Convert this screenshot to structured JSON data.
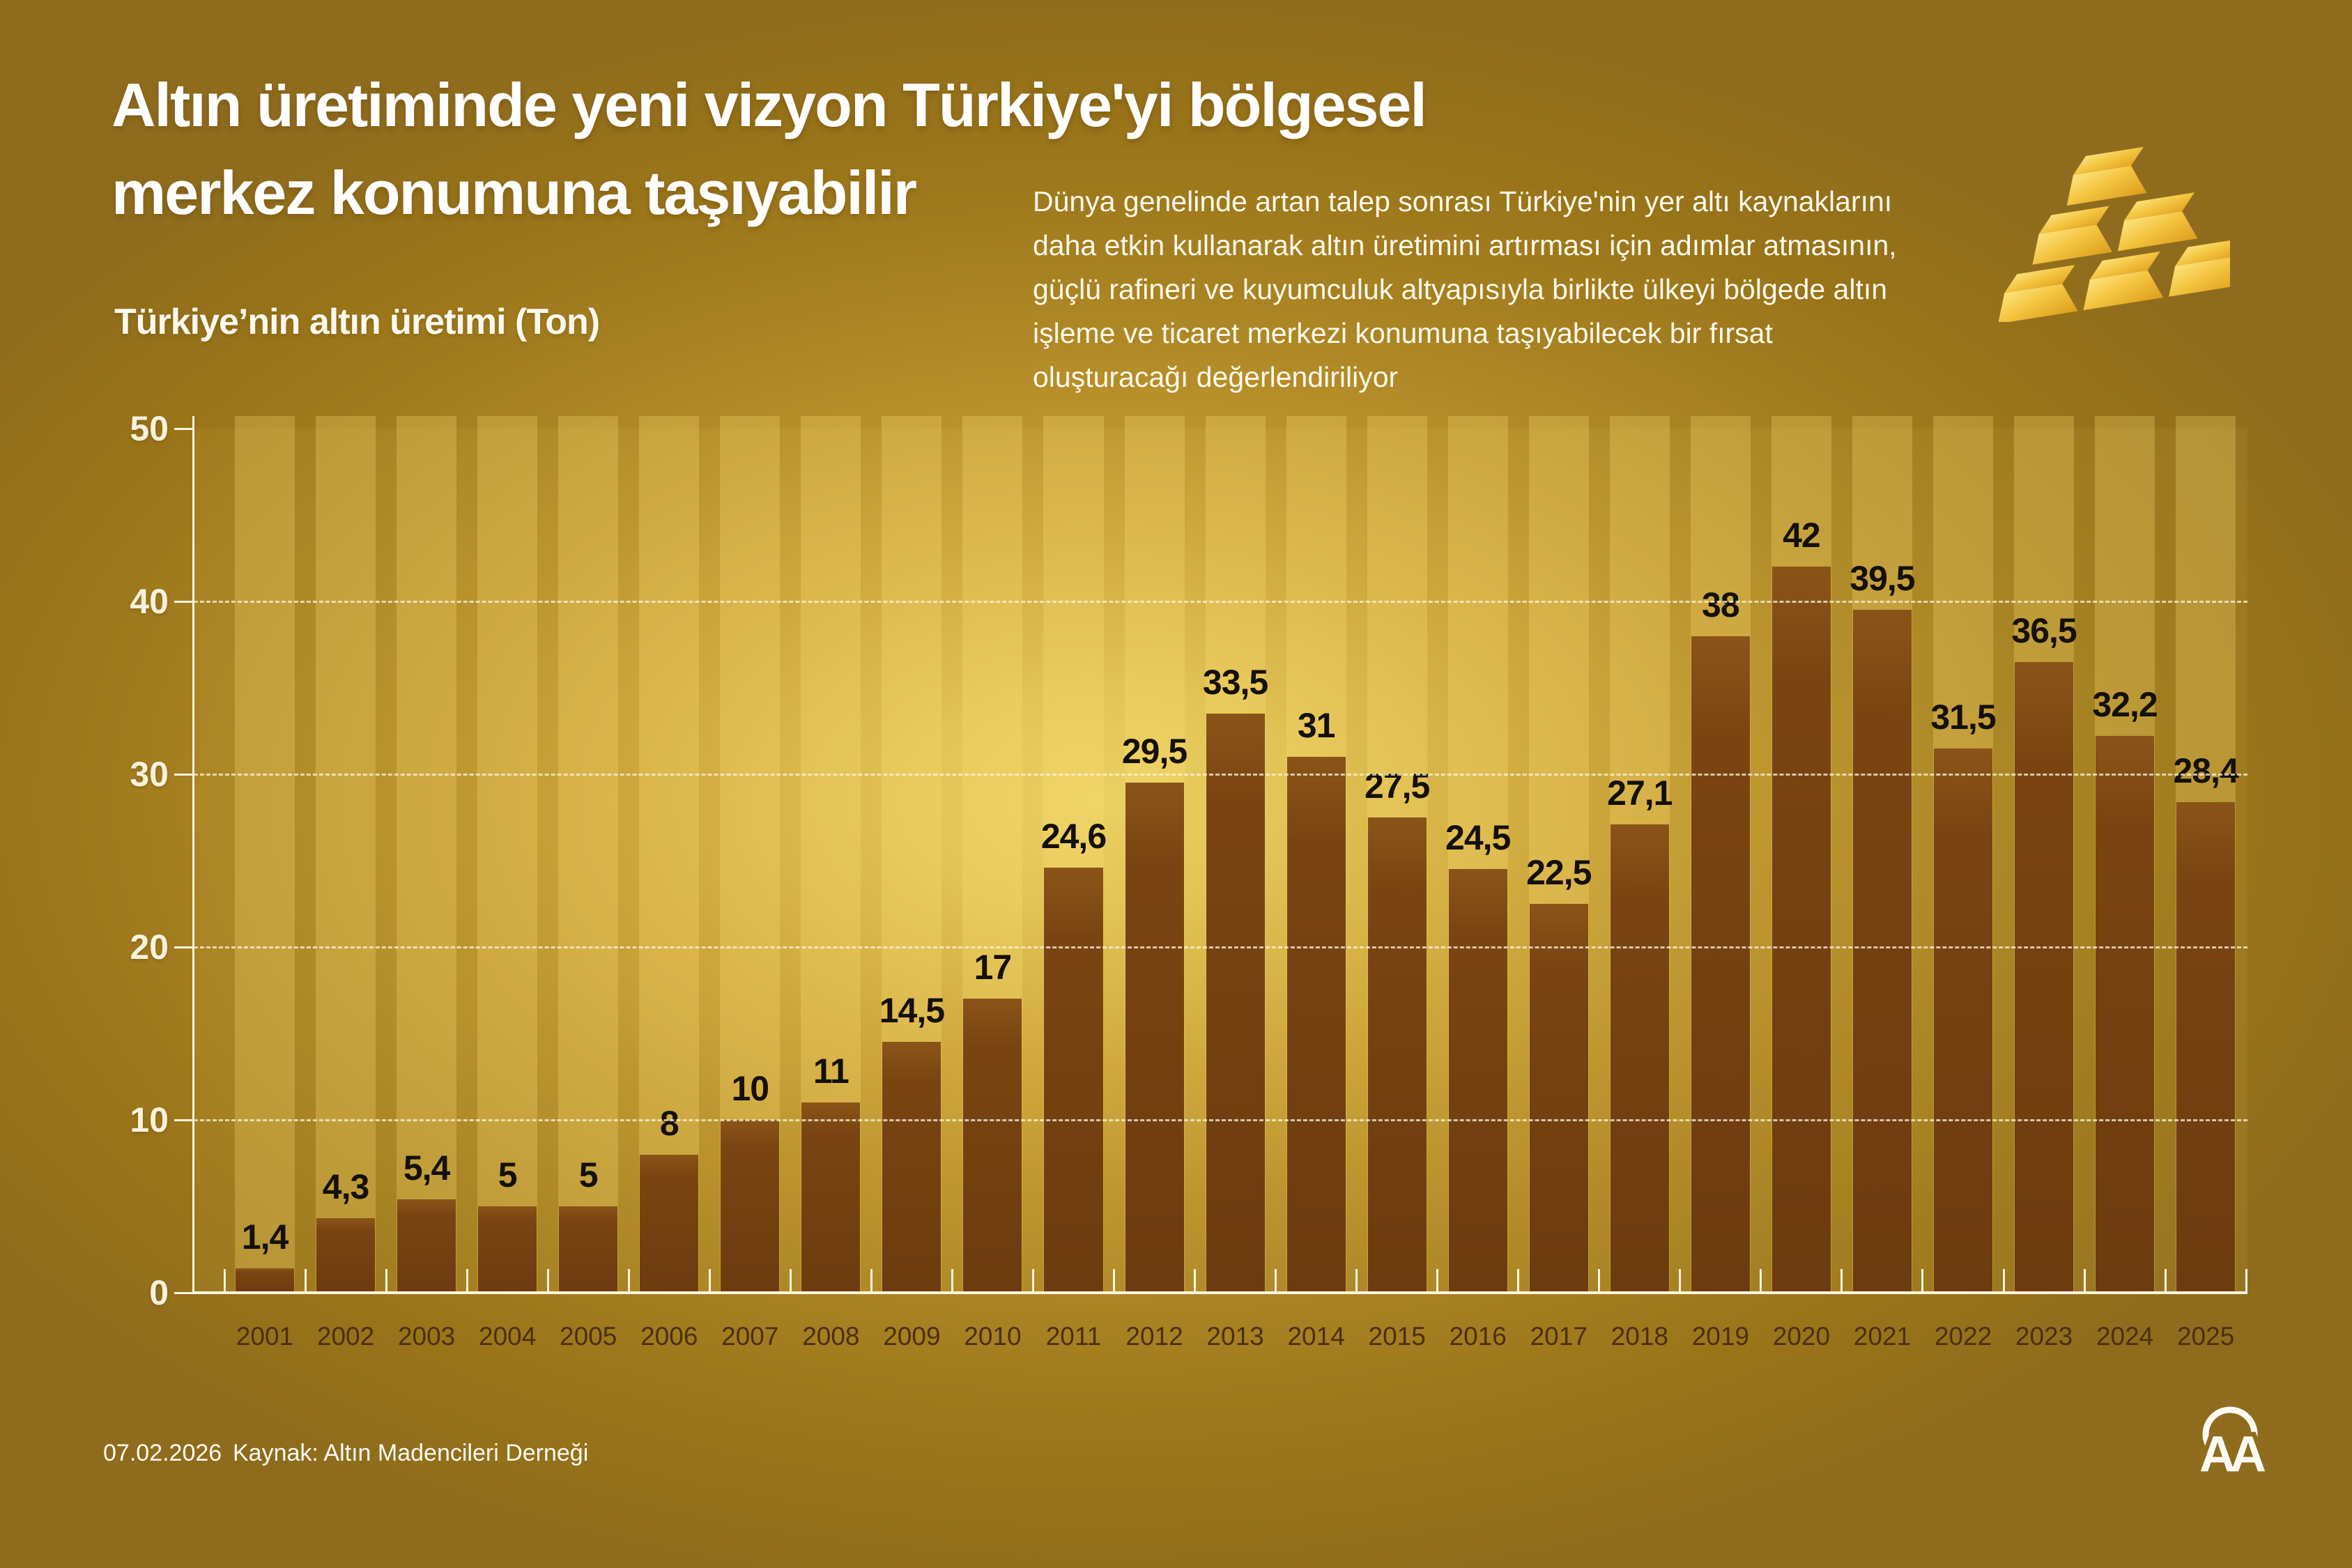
{
  "header": {
    "title_line1": "Altın üretiminde yeni vizyon Türkiye'yi bölgesel",
    "title_line2": "merkez konumuna taşıyabilir",
    "chart_label": "Türkiye’nin altın üretimi (Ton)",
    "description": "Dünya genelinde artan talep sonrası Türkiye'nin yer altı kaynaklarını daha etkin kullanarak altın üretimini artırması için adımlar atmasının, güçlü rafineri ve kuyumculuk altyapısıyla birlikte ülkeyi bölgede altın işleme ve ticaret merkezi konumuna taşıyabilecek bir fırsat oluşturacağı değerlendiriliyor"
  },
  "chart_data": {
    "type": "bar",
    "title": "Türkiye’nin altın üretimi (Ton)",
    "xlabel": "",
    "ylabel": "Ton",
    "ylim": [
      0,
      50
    ],
    "yticks": [
      0,
      10,
      20,
      30,
      40,
      50
    ],
    "grid": "horizontal dashed lines at 10, 20, 30 and 40; solid baseline at 0",
    "legend": "none",
    "categories": [
      "2001",
      "2002",
      "2003",
      "2004",
      "2005",
      "2006",
      "2007",
      "2008",
      "2009",
      "2010",
      "2011",
      "2012",
      "2013",
      "2014",
      "2015",
      "2016",
      "2017",
      "2018",
      "2019",
      "2020",
      "2021",
      "2022",
      "2023",
      "2024",
      "2025"
    ],
    "values": [
      1.4,
      4.3,
      5.4,
      5,
      5,
      8,
      10,
      11,
      14.5,
      17,
      24.6,
      29.5,
      33.5,
      31,
      27.5,
      24.5,
      22.5,
      27.1,
      38,
      42,
      39.5,
      31.5,
      36.5,
      32.2,
      28.4
    ],
    "value_labels": [
      "1,4",
      "4,3",
      "5,4",
      "5",
      "5",
      "8",
      "10",
      "11",
      "14,5",
      "17",
      "24,6",
      "29,5",
      "33,5",
      "31",
      "27,5",
      "24,5",
      "22,5",
      "27,1",
      "38",
      "42",
      "39,5",
      "31,5",
      "36,5",
      "32,2",
      "28,4"
    ]
  },
  "footer": {
    "date": "07.02.2026",
    "source": "Kaynak: Altın Madencileri Derneği"
  },
  "branding": {
    "agency_logo_text": "AA",
    "decorative_icon": "gold-bars-icon"
  },
  "colors": {
    "background_center": "#EACF62",
    "background_edge": "#8F6C1F",
    "bar": "#74400F",
    "column_band": "rgba(255,226,118,0.27)",
    "value_label": "#15100A",
    "year_label": "#4C2F10",
    "axis": "#FAF3DF",
    "text_white": "#FFFFFF"
  }
}
